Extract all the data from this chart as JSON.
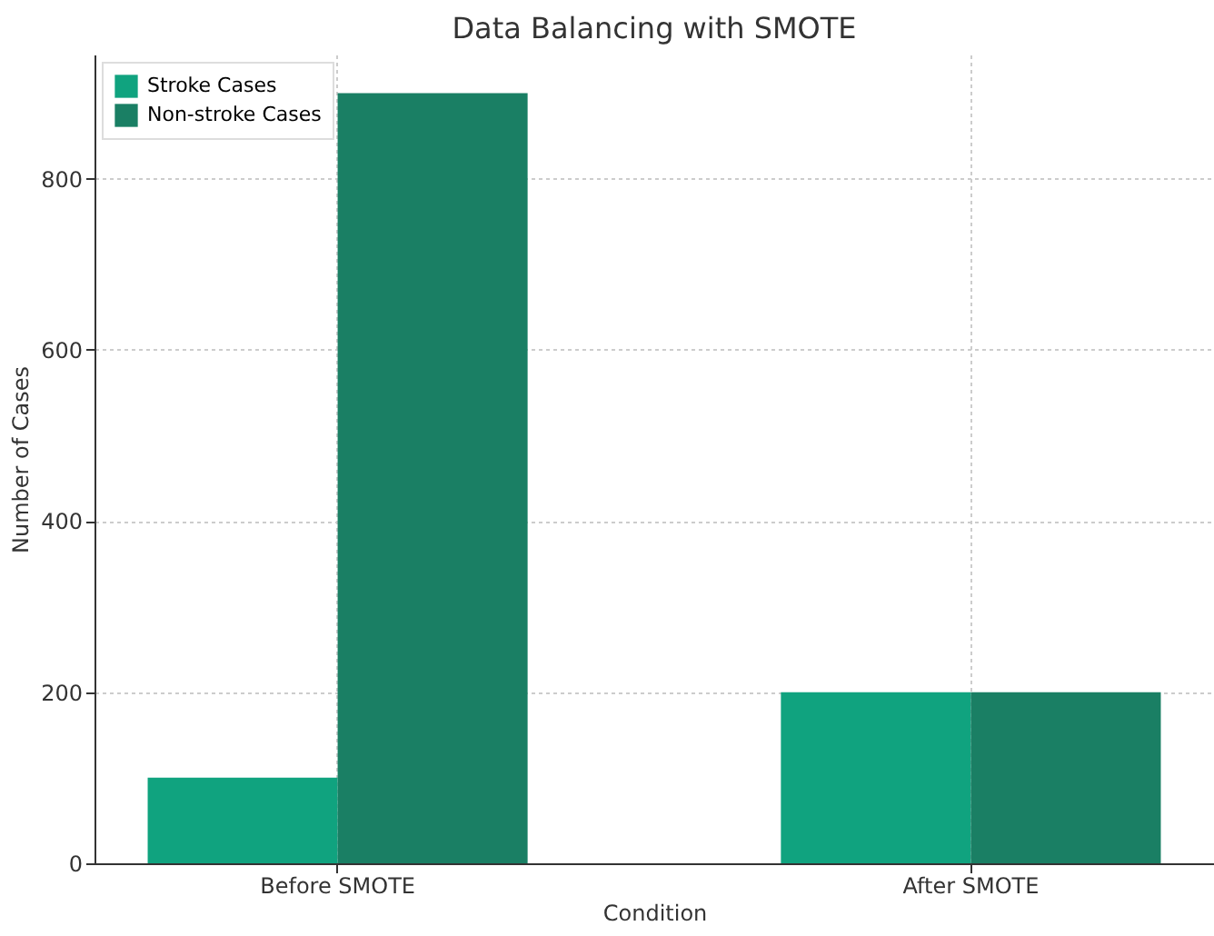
{
  "chart_data": {
    "type": "bar",
    "title": "Data Balancing with SMOTE",
    "xlabel": "Condition",
    "ylabel": "Number of Cases",
    "categories": [
      "Before SMOTE",
      "After SMOTE"
    ],
    "series": [
      {
        "name": "Stroke Cases",
        "color": "#10a37f",
        "values": [
          100,
          200
        ]
      },
      {
        "name": "Non-stroke Cases",
        "color": "#1a7f64",
        "values": [
          900,
          200
        ]
      }
    ],
    "ylim": [
      0,
      945
    ],
    "yticks": [
      0,
      200,
      400,
      600,
      800
    ],
    "grid": true,
    "legend": "top left"
  }
}
